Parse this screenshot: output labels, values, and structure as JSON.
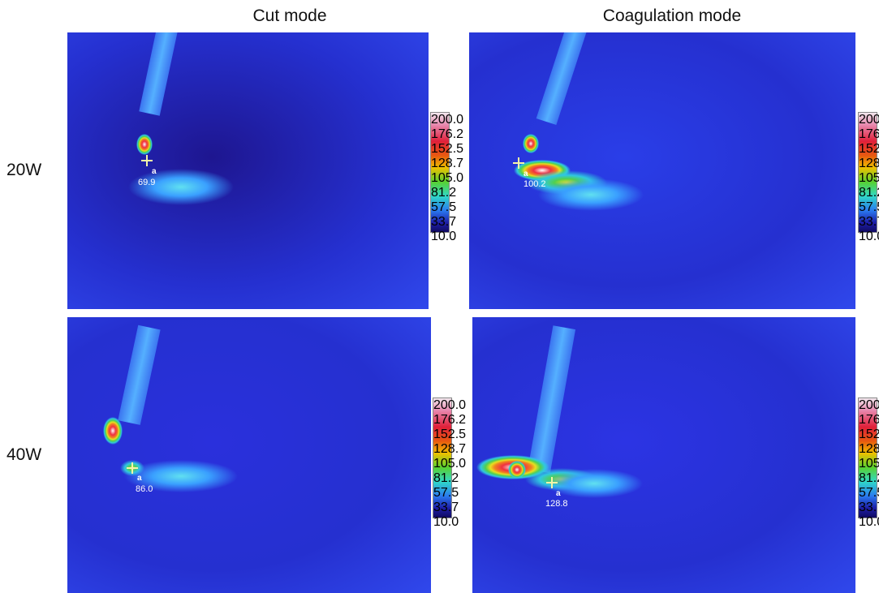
{
  "column_headers": [
    "Cut mode",
    "Coagulation mode"
  ],
  "row_labels": [
    "20W",
    "40W"
  ],
  "colorbar": {
    "ticks": [
      "200.0",
      "176.2",
      "152.5",
      "128.7",
      "105.0",
      "81.2",
      "57.5",
      "33.7",
      "10.0"
    ]
  },
  "panels": [
    {
      "marker_label": "a",
      "value": "69.9"
    },
    {
      "marker_label": "a",
      "value": "100.2"
    },
    {
      "marker_label": "a",
      "value": "86.0"
    },
    {
      "marker_label": "a",
      "value": "128.8"
    }
  ]
}
